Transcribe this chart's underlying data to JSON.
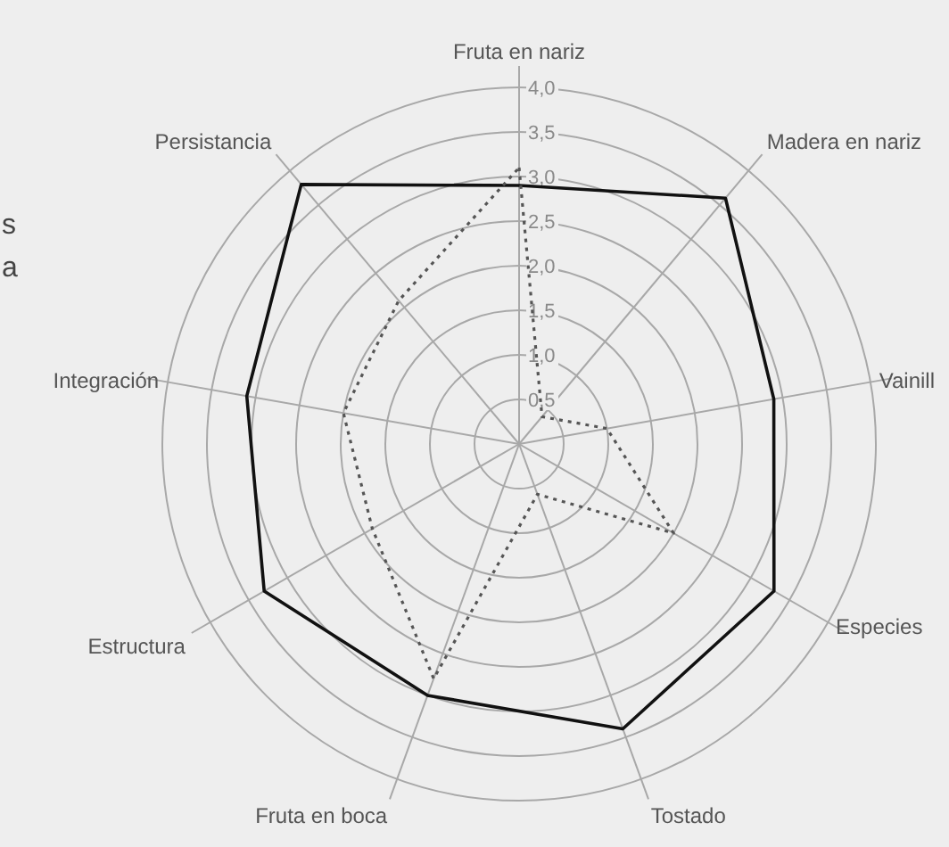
{
  "chart_data": {
    "type": "radar",
    "categories": [
      "Fruta en nariz",
      "Madera en nariz",
      "Vainill",
      "Especies",
      "Tostado",
      "Fruta en boca",
      "Estructura",
      "Integración",
      "Persistancia"
    ],
    "series": [
      {
        "color": "#111111",
        "line_style": "solid",
        "values": [
          2.9,
          3.6,
          2.9,
          3.3,
          3.4,
          3.0,
          3.3,
          3.1,
          3.8
        ]
      },
      {
        "color": "#555555",
        "line_style": "dotted",
        "values": [
          3.1,
          0.4,
          1.0,
          2.0,
          0.6,
          2.8,
          1.9,
          2.0,
          2.1
        ]
      }
    ],
    "ylim": [
      0,
      4
    ],
    "yticks": [
      {
        "value": 0.5,
        "label": "0,5"
      },
      {
        "value": 1,
        "label": "1,0"
      },
      {
        "value": 1.5,
        "label": "1,5"
      },
      {
        "value": 2,
        "label": "2,0"
      },
      {
        "value": 2.5,
        "label": "2,5"
      },
      {
        "value": 3,
        "label": "3,0"
      },
      {
        "value": 3.5,
        "label": "3,5"
      },
      {
        "value": 4,
        "label": "4,0"
      }
    ],
    "grid": true,
    "marker": "none",
    "annotations": [
      "s",
      "a"
    ]
  }
}
